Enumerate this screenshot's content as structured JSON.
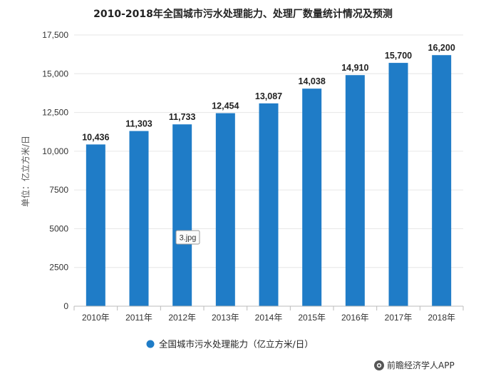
{
  "chart_data": {
    "type": "bar",
    "title": "2010-2018年全国城市污水处理能力、处理厂数量统计情况及预测",
    "ylabel": "单位：亿立方米/日",
    "ylim": [
      0,
      17500
    ],
    "yticks": [
      0,
      2500,
      5000,
      7500,
      10000,
      12500,
      15000,
      17500
    ],
    "ytick_labels": [
      "0",
      "2500",
      "5000",
      "7500",
      "10,000",
      "12,500",
      "15,000",
      "17,500"
    ],
    "grid": true,
    "categories": [
      "2010年",
      "2011年",
      "2012年",
      "2013年",
      "2014年",
      "2015年",
      "2016年",
      "2017年",
      "2018年"
    ],
    "series": [
      {
        "name": "全国城市污水处理能力（亿立方米/日）",
        "values": [
          10436,
          11303,
          11733,
          12454,
          13087,
          14038,
          14910,
          15700,
          16200
        ],
        "data_labels": [
          "10,436",
          "11,303",
          "11,733",
          "12,454",
          "13,087",
          "14,038",
          "14,910",
          "15,700",
          "16,200"
        ],
        "color": "#1f7cc7"
      }
    ],
    "legend": {
      "placement": "bottom",
      "label": "全国城市污水处理能力（亿立方米/日）"
    }
  },
  "tooltip": {
    "text": "3.jpg"
  },
  "source": {
    "text": "前瞻经济学人APP",
    "icon": "camera-icon"
  },
  "colors": {
    "bar": "#1f7cc7",
    "grid": "#e6e6e6",
    "axis": "#bbbbbb"
  }
}
